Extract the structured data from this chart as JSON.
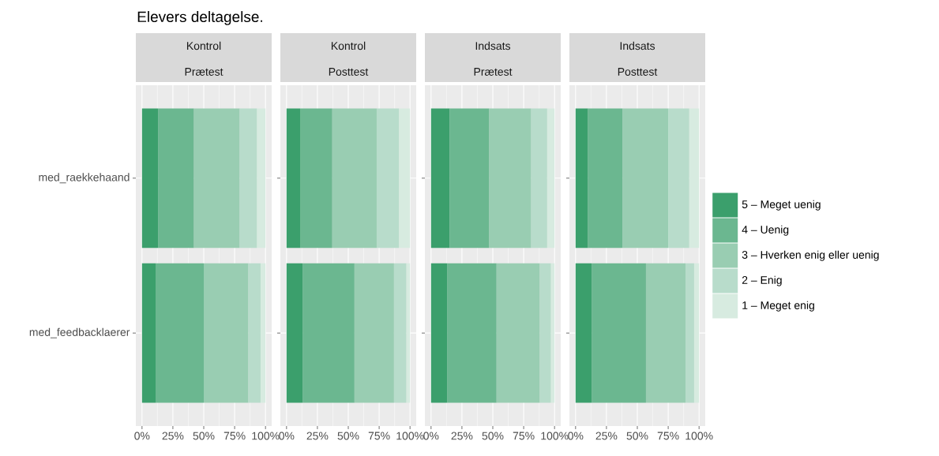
{
  "chart_data": [
    {
      "type": "bar",
      "orientation": "horizontal",
      "stacked": true,
      "title": "Kontrol",
      "subtitle": "Prætest",
      "annotations": [
        "Elevers deltagelse."
      ],
      "categories": [
        "med_raekkehaand",
        "med_feedbacklaerer"
      ],
      "series": [
        {
          "color": "#3b9f6c",
          "values": [
            13,
            11
          ]
        },
        {
          "color": "#6bb790",
          "values": [
            29,
            39
          ]
        },
        {
          "color": "#99cdb2",
          "values": [
            37,
            36
          ]
        },
        {
          "color": "#b8dccb",
          "values": [
            14,
            10
          ]
        },
        {
          "color": "#d7ebe0",
          "values": [
            7,
            4
          ]
        }
      ],
      "xlim": [
        -5,
        105
      ],
      "xticks": [
        {
          "value": 0,
          "label": "0%"
        },
        {
          "value": 25,
          "label": "25%"
        },
        {
          "value": 50,
          "label": "50%"
        },
        {
          "value": 75,
          "label": "75%"
        },
        {
          "value": 100,
          "label": "100%"
        }
      ],
      "grid": true,
      "legend": false
    },
    {
      "type": "bar",
      "orientation": "horizontal",
      "stacked": true,
      "title": "Kontrol",
      "subtitle": "Posttest",
      "categories": [
        null,
        null
      ],
      "series": [
        {
          "color": "#3b9f6c",
          "values": [
            11,
            13
          ]
        },
        {
          "color": "#6bb790",
          "values": [
            26,
            42
          ]
        },
        {
          "color": "#99cdb2",
          "values": [
            36,
            32
          ]
        },
        {
          "color": "#b8dccb",
          "values": [
            18,
            10
          ]
        },
        {
          "color": "#d7ebe0",
          "values": [
            9,
            3
          ]
        }
      ],
      "xlim": [
        -5,
        105
      ],
      "xticks": [
        {
          "value": 0,
          "label": "0%"
        },
        {
          "value": 25,
          "label": "25%"
        },
        {
          "value": 50,
          "label": "50%"
        },
        {
          "value": 75,
          "label": "75%"
        },
        {
          "value": 100,
          "label": "100%"
        }
      ],
      "grid": true,
      "legend": false,
      "tick_labels": "x"
    },
    {
      "type": "bar",
      "orientation": "horizontal",
      "stacked": true,
      "title": "Indsats",
      "subtitle": "Prætest",
      "categories": [
        null,
        null
      ],
      "series": [
        {
          "color": "#3b9f6c",
          "values": [
            15,
            13
          ]
        },
        {
          "color": "#6bb790",
          "values": [
            32,
            40
          ]
        },
        {
          "color": "#99cdb2",
          "values": [
            34,
            35
          ]
        },
        {
          "color": "#b8dccb",
          "values": [
            13,
            9
          ]
        },
        {
          "color": "#d7ebe0",
          "values": [
            6,
            3
          ]
        }
      ],
      "xlim": [
        -5,
        105
      ],
      "xticks": [
        {
          "value": 0,
          "label": "0%"
        },
        {
          "value": 25,
          "label": "25%"
        },
        {
          "value": 50,
          "label": "50%"
        },
        {
          "value": 75,
          "label": "75%"
        },
        {
          "value": 100,
          "label": "100%"
        }
      ],
      "grid": true,
      "legend": false,
      "tick_labels": "x"
    },
    {
      "type": "bar",
      "orientation": "horizontal",
      "stacked": true,
      "title": "Indsats",
      "subtitle": "Posttest",
      "categories": [
        null,
        null
      ],
      "series": [
        {
          "name": "5 – Meget uenig",
          "color": "#3b9f6c",
          "values": [
            10,
            13
          ]
        },
        {
          "name": "4 – Uenig",
          "color": "#6bb790",
          "values": [
            28,
            44
          ]
        },
        {
          "name": "3 – Hverken enig eller uenig",
          "color": "#99cdb2",
          "values": [
            37,
            32
          ]
        },
        {
          "name": "2 – Enig",
          "color": "#b8dccb",
          "values": [
            17,
            7
          ]
        },
        {
          "name": "1 – Meget enig",
          "color": "#d7ebe0",
          "values": [
            8,
            4
          ]
        }
      ],
      "xlim": [
        -5,
        105
      ],
      "xticks": [
        {
          "value": 0,
          "label": "0%"
        },
        {
          "value": 25,
          "label": "25%"
        },
        {
          "value": 50,
          "label": "50%"
        },
        {
          "value": 75,
          "label": "75%"
        },
        {
          "value": 100,
          "label": "100%"
        }
      ],
      "grid": true,
      "legend": "right",
      "tick_labels": "x"
    }
  ]
}
